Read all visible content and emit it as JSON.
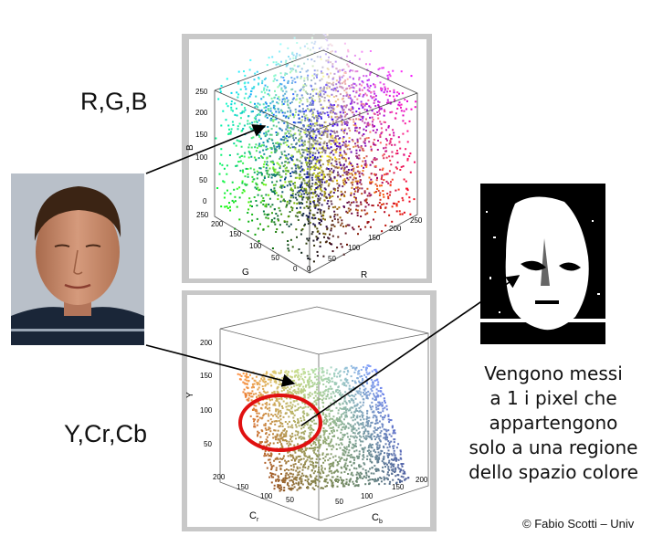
{
  "labels": {
    "rgb": "R,G,B",
    "ycc": "Y,Cr,Cb"
  },
  "description": {
    "line1": "Vengono messi",
    "line2": "a 1 i pixel che",
    "line3": "appartengono",
    "line4": "solo a una regione",
    "line5": "dello spazio colore"
  },
  "footer": "© Fabio Scotti  – Univ",
  "rgb_plot": {
    "axis_b": "B",
    "axis_g": "G",
    "axis_r": "R",
    "b_ticks": [
      "250",
      "200",
      "150",
      "100",
      "50",
      "0"
    ],
    "g_ticks": [
      "250",
      "200",
      "150",
      "100",
      "50",
      "0"
    ],
    "r_ticks": [
      "0",
      "50",
      "100",
      "150",
      "200",
      "250"
    ]
  },
  "ycc_plot": {
    "axis_y": "Y",
    "axis_cr": "C",
    "axis_cr_sub": "r",
    "axis_cb": "C",
    "axis_cb_sub": "b",
    "y_ticks": [
      "200",
      "150",
      "100",
      "50"
    ],
    "cr_ticks": [
      "200",
      "150",
      "100",
      "50"
    ],
    "cb_ticks": [
      "50",
      "100",
      "150",
      "200"
    ]
  },
  "colors": {
    "arrow": "#000000",
    "highlight_circle": "#e01010",
    "panel_bg": "#c8c8c8"
  }
}
